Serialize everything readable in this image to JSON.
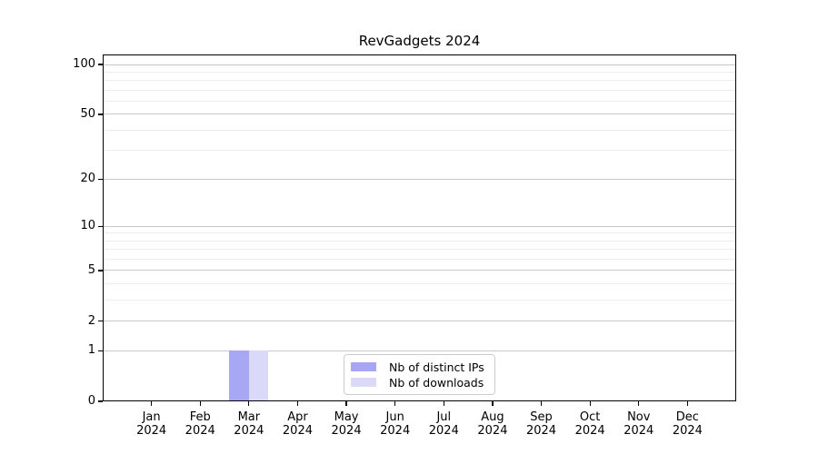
{
  "chart_data": {
    "type": "bar",
    "title": "RevGadgets 2024",
    "categories": [
      "Jan 2024",
      "Feb 2024",
      "Mar 2024",
      "Apr 2024",
      "May 2024",
      "Jun 2024",
      "Jul 2024",
      "Aug 2024",
      "Sep 2024",
      "Oct 2024",
      "Nov 2024",
      "Dec 2024"
    ],
    "series": [
      {
        "name": "Nb of distinct IPs",
        "color": "#a7a7f3",
        "values": [
          0,
          0,
          1,
          0,
          0,
          0,
          0,
          0,
          0,
          0,
          0,
          0
        ]
      },
      {
        "name": "Nb of downloads",
        "color": "#dadaf8",
        "values": [
          0,
          0,
          1,
          0,
          0,
          0,
          0,
          0,
          0,
          0,
          0,
          0
        ]
      }
    ],
    "xlabel": "",
    "ylabel": "",
    "y_scale": "log1p",
    "y_ticks": [
      0,
      1,
      2,
      5,
      10,
      20,
      50,
      100
    ],
    "y_minor_ticks": [
      3,
      4,
      6,
      7,
      8,
      9,
      30,
      40,
      60,
      70,
      80,
      90
    ],
    "ylim": [
      0,
      115
    ],
    "grid": true,
    "legend": {
      "position": "lower center",
      "entries": [
        "Nb of distinct IPs",
        "Nb of downloads"
      ]
    }
  }
}
